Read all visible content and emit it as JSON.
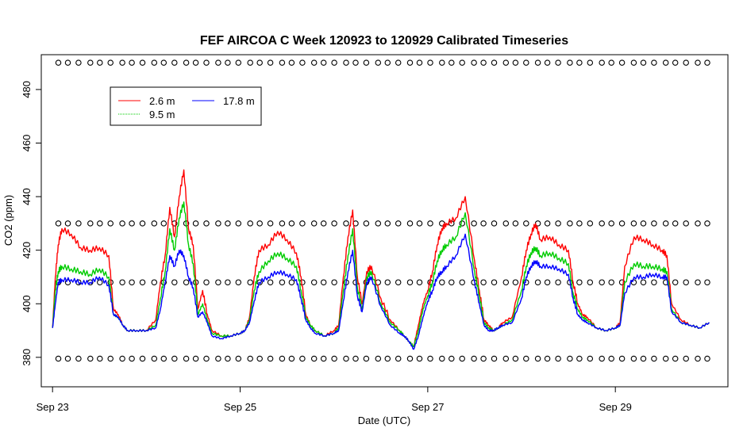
{
  "chart_data": {
    "type": "line",
    "title": "FEF AIRCOA C  Week 120923 to 120929  Calibrated Timeseries",
    "xlabel": "Date (UTC)",
    "ylabel": "CO2 (ppm)",
    "xlim": [
      -0.12,
      7.2
    ],
    "ylim": [
      369,
      493
    ],
    "x_ticks": [
      {
        "value": 0,
        "label": "Sep 23"
      },
      {
        "value": 2,
        "label": "Sep 25"
      },
      {
        "value": 4,
        "label": "Sep 27"
      },
      {
        "value": 6,
        "label": "Sep 29"
      }
    ],
    "y_ticks": [
      {
        "value": 380,
        "label": "380"
      },
      {
        "value": 400,
        "label": "400"
      },
      {
        "value": 420,
        "label": "420"
      },
      {
        "value": 440,
        "label": "440"
      },
      {
        "value": 460,
        "label": "460"
      },
      {
        "value": 480,
        "label": "480"
      }
    ],
    "legend": {
      "position": "top-left",
      "entries": [
        {
          "label": "2.6 m",
          "color": "#ff0000"
        },
        {
          "label": "9.5 m",
          "color": "#00cc00"
        },
        {
          "label": "17.8 m",
          "color": "#0000ff"
        }
      ]
    },
    "series": [
      {
        "name": "2.6 m",
        "color": "#ff0000",
        "x": [
          0,
          0.03,
          0.06,
          0.1,
          0.2,
          0.3,
          0.4,
          0.5,
          0.6,
          0.65,
          0.7,
          0.75,
          0.8,
          0.9,
          1.0,
          1.1,
          1.15,
          1.2,
          1.25,
          1.3,
          1.35,
          1.4,
          1.45,
          1.5,
          1.55,
          1.6,
          1.65,
          1.7,
          1.8,
          1.9,
          2.0,
          2.05,
          2.1,
          2.15,
          2.2,
          2.3,
          2.4,
          2.5,
          2.6,
          2.65,
          2.7,
          2.75,
          2.8,
          2.9,
          3.0,
          3.05,
          3.1,
          3.15,
          3.2,
          3.25,
          3.3,
          3.35,
          3.4,
          3.5,
          3.6,
          3.7,
          3.75,
          3.8,
          3.85,
          3.9,
          3.95,
          4.0,
          4.05,
          4.1,
          4.15,
          4.2,
          4.3,
          4.4,
          4.5,
          4.55,
          4.6,
          4.65,
          4.7,
          4.75,
          4.8,
          4.9,
          5.0,
          5.05,
          5.1,
          5.15,
          5.2,
          5.3,
          5.4,
          5.5,
          5.55,
          5.6,
          5.65,
          5.7,
          5.8,
          5.9,
          6.0,
          6.05,
          6.1,
          6.2,
          6.3,
          6.4,
          6.5,
          6.55,
          6.6,
          6.7,
          6.8,
          6.9,
          7.0
        ],
        "y": [
          391,
          410,
          422,
          428,
          426,
          421,
          420,
          421,
          418,
          398,
          396,
          392,
          390,
          390,
          390,
          394,
          408,
          418,
          436,
          425,
          440,
          450,
          428,
          422,
          398,
          405,
          396,
          390,
          388,
          388,
          389,
          390,
          395,
          410,
          420,
          422,
          427,
          424,
          419,
          410,
          396,
          392,
          390,
          388,
          390,
          392,
          410,
          425,
          435,
          410,
          400,
          412,
          414,
          402,
          394,
          390,
          388,
          386,
          384,
          392,
          400,
          405,
          412,
          422,
          428,
          430,
          432,
          440,
          416,
          405,
          394,
          392,
          390,
          391,
          393,
          395,
          410,
          420,
          426,
          430,
          424,
          425,
          422,
          420,
          408,
          400,
          396,
          395,
          391,
          390,
          391,
          393,
          414,
          425,
          424,
          422,
          420,
          418,
          400,
          394,
          392,
          391,
          393
        ]
      },
      {
        "name": "9.5 m",
        "color": "#00cc00",
        "x": [
          0,
          0.03,
          0.06,
          0.1,
          0.2,
          0.3,
          0.4,
          0.5,
          0.6,
          0.65,
          0.7,
          0.75,
          0.8,
          0.9,
          1.0,
          1.1,
          1.15,
          1.2,
          1.25,
          1.3,
          1.35,
          1.4,
          1.45,
          1.5,
          1.55,
          1.6,
          1.65,
          1.7,
          1.8,
          1.9,
          2.0,
          2.05,
          2.1,
          2.15,
          2.2,
          2.3,
          2.4,
          2.5,
          2.6,
          2.65,
          2.7,
          2.75,
          2.8,
          2.9,
          3.0,
          3.05,
          3.1,
          3.15,
          3.2,
          3.25,
          3.3,
          3.35,
          3.4,
          3.5,
          3.6,
          3.7,
          3.75,
          3.8,
          3.85,
          3.9,
          3.95,
          4.0,
          4.05,
          4.1,
          4.15,
          4.2,
          4.3,
          4.4,
          4.5,
          4.55,
          4.6,
          4.65,
          4.7,
          4.75,
          4.8,
          4.9,
          5.0,
          5.05,
          5.1,
          5.15,
          5.2,
          5.3,
          5.4,
          5.5,
          5.55,
          5.6,
          5.65,
          5.7,
          5.8,
          5.9,
          6.0,
          6.05,
          6.1,
          6.2,
          6.3,
          6.4,
          6.5,
          6.55,
          6.6,
          6.7,
          6.8,
          6.9,
          7.0
        ],
        "y": [
          391,
          405,
          412,
          414,
          413,
          412,
          411,
          413,
          410,
          396,
          395,
          392,
          390,
          390,
          390,
          392,
          402,
          412,
          428,
          420,
          432,
          438,
          422,
          415,
          396,
          400,
          394,
          389,
          388,
          388,
          389,
          390,
          394,
          405,
          412,
          416,
          419,
          417,
          414,
          405,
          395,
          392,
          390,
          388,
          389,
          391,
          405,
          418,
          428,
          406,
          398,
          410,
          412,
          400,
          393,
          390,
          388,
          386,
          384,
          390,
          398,
          403,
          408,
          416,
          420,
          422,
          425,
          434,
          412,
          403,
          393,
          391,
          390,
          391,
          392,
          394,
          405,
          414,
          419,
          421,
          418,
          419,
          417,
          415,
          404,
          398,
          395,
          394,
          391,
          390,
          391,
          392,
          408,
          415,
          414,
          414,
          413,
          412,
          398,
          393,
          392,
          391,
          393
        ]
      },
      {
        "name": "17.8 m",
        "color": "#0000ff",
        "x": [
          0,
          0.03,
          0.06,
          0.1,
          0.2,
          0.3,
          0.4,
          0.5,
          0.6,
          0.65,
          0.7,
          0.75,
          0.8,
          0.9,
          1.0,
          1.1,
          1.15,
          1.2,
          1.25,
          1.3,
          1.35,
          1.4,
          1.45,
          1.5,
          1.55,
          1.6,
          1.65,
          1.7,
          1.8,
          1.9,
          2.0,
          2.05,
          2.1,
          2.15,
          2.2,
          2.3,
          2.4,
          2.5,
          2.6,
          2.65,
          2.7,
          2.75,
          2.8,
          2.9,
          3.0,
          3.05,
          3.1,
          3.15,
          3.2,
          3.25,
          3.3,
          3.35,
          3.4,
          3.5,
          3.6,
          3.7,
          3.75,
          3.8,
          3.85,
          3.9,
          3.95,
          4.0,
          4.05,
          4.1,
          4.15,
          4.2,
          4.3,
          4.4,
          4.5,
          4.55,
          4.6,
          4.65,
          4.7,
          4.75,
          4.8,
          4.9,
          5.0,
          5.05,
          5.1,
          5.15,
          5.2,
          5.3,
          5.4,
          5.5,
          5.55,
          5.6,
          5.65,
          5.7,
          5.8,
          5.9,
          6.0,
          6.05,
          6.1,
          6.2,
          6.3,
          6.4,
          6.5,
          6.55,
          6.6,
          6.7,
          6.8,
          6.9,
          7.0
        ],
        "y": [
          391,
          400,
          408,
          409,
          409,
          408,
          408,
          410,
          407,
          396,
          395,
          392,
          390,
          390,
          390,
          391,
          398,
          408,
          418,
          414,
          420,
          418,
          410,
          406,
          395,
          397,
          393,
          388,
          387,
          388,
          389,
          390,
          393,
          401,
          408,
          410,
          412,
          411,
          409,
          402,
          394,
          391,
          389,
          388,
          389,
          390,
          401,
          412,
          420,
          403,
          397,
          408,
          410,
          399,
          392,
          389,
          388,
          386,
          383,
          388,
          395,
          401,
          405,
          410,
          412,
          414,
          418,
          426,
          408,
          400,
          392,
          390,
          390,
          391,
          392,
          393,
          402,
          410,
          414,
          416,
          414,
          414,
          413,
          411,
          402,
          396,
          394,
          393,
          391,
          390,
          391,
          392,
          404,
          410,
          410,
          411,
          410,
          410,
          397,
          393,
          392,
          391,
          393
        ]
      }
    ],
    "marker_rows": [
      {
        "y": 490,
        "count": 62
      },
      {
        "y": 430,
        "count": 62
      },
      {
        "y": 408,
        "count": 62
      },
      {
        "y": 379.5,
        "count": 62
      }
    ],
    "marker_style": "open-circle"
  }
}
